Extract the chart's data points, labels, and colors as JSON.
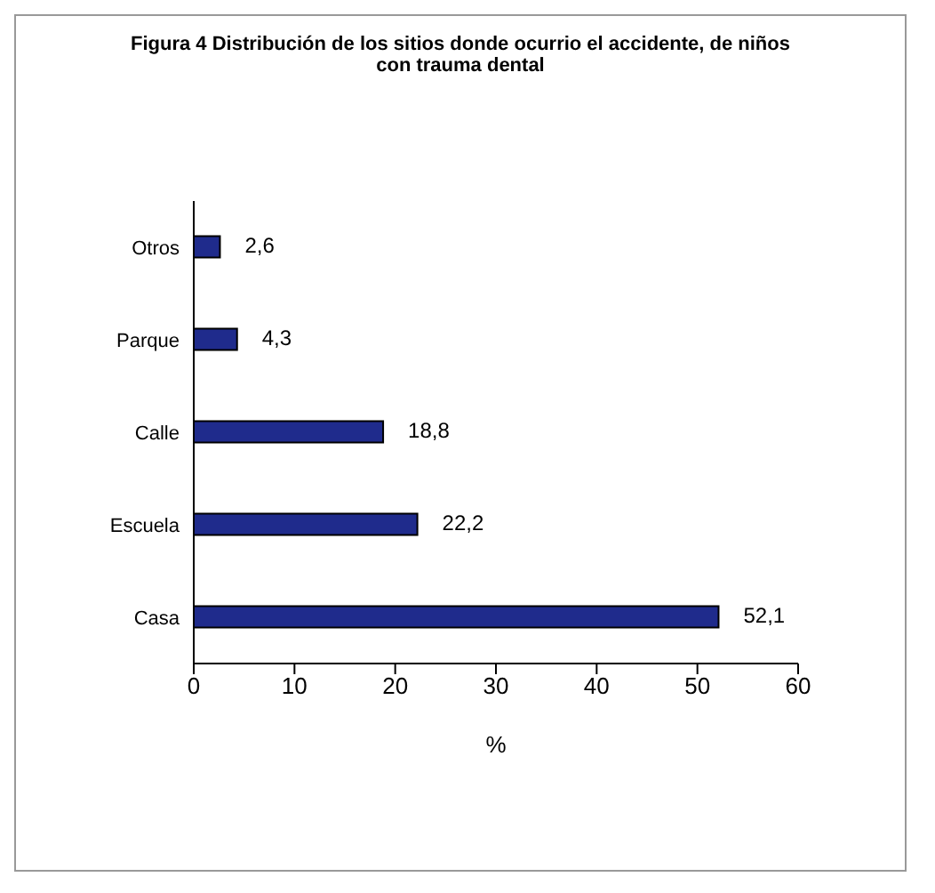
{
  "chart_data": {
    "type": "bar",
    "orientation": "horizontal",
    "title": "Figura 4 Distribución de los sitios donde ocurrio el accidente,  de niños con trauma dental",
    "categories": [
      "Otros",
      "Parque",
      "Calle",
      "Escuela",
      "Casa"
    ],
    "values": [
      2.6,
      4.3,
      18.8,
      22.2,
      52.1
    ],
    "value_labels": [
      "2,6",
      "4,3",
      "18,8",
      "22,2",
      "52,1"
    ],
    "color": "#1f2b8c",
    "xlim": [
      0,
      60
    ],
    "xticks": [
      0,
      10,
      20,
      30,
      40,
      50,
      60
    ],
    "xlabel": "%",
    "grid": false,
    "legend": false
  }
}
